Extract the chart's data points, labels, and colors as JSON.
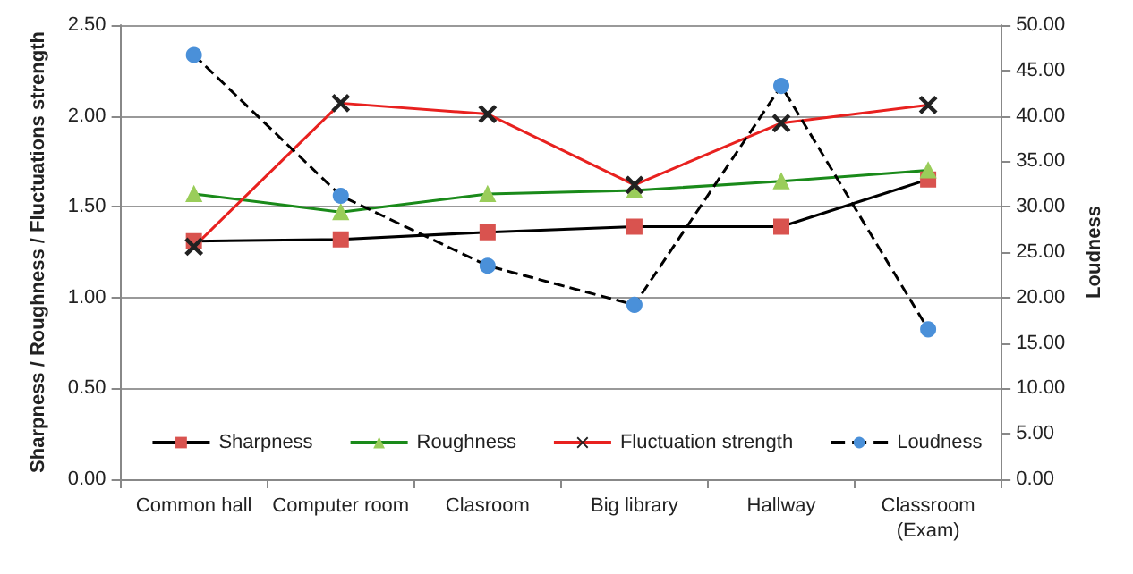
{
  "chart_data": {
    "type": "line",
    "ylabel": "Sharpness / Roughness / Fluctuations strength",
    "y2label": "Loudness",
    "categories": [
      "Common hall",
      "Computer room",
      "Clasroom",
      "Big library",
      "Hallway",
      "Classroom\n(Exam)"
    ],
    "series": [
      {
        "name": "Sharpness",
        "color": "#000000",
        "colors": [
          "#d9534f",
          "#d9534f",
          "#d9534f",
          "#d9534f",
          "#d9534f",
          "#d9534f"
        ],
        "marker": "square",
        "line_style": "solid",
        "values": [
          1.31,
          1.32,
          1.36,
          1.39,
          1.39,
          1.65
        ]
      },
      {
        "name": "Roughness",
        "color": "#1a8a1a",
        "colors": [
          "#9acd5a",
          "#9acd5a",
          "#9acd5a",
          "#9acd5a",
          "#9acd5a",
          "#9acd5a"
        ],
        "marker": "triangle",
        "line_style": "solid",
        "values": [
          1.57,
          1.47,
          1.57,
          1.59,
          1.64,
          1.7
        ]
      },
      {
        "name": "Fluctuation strength",
        "color": "#e8211f",
        "colors": [
          "#222222",
          "#222222",
          "#222222",
          "#222222",
          "#222222",
          "#222222"
        ],
        "marker": "cross",
        "line_style": "solid",
        "values": [
          1.28,
          2.07,
          2.01,
          1.62,
          1.96,
          2.06
        ]
      },
      {
        "name": "Loudness",
        "color": "#000000",
        "colors": [
          "#4a90d9",
          "#4a90d9",
          "#4a90d9",
          "#4a90d9",
          "#4a90d9",
          "#4a90d9"
        ],
        "marker": "circle",
        "line_style": "dashed",
        "axis": "y2",
        "values": [
          46.7,
          31.2,
          23.5,
          19.2,
          43.3,
          16.5
        ]
      }
    ],
    "ylim": [
      0,
      2.5
    ],
    "yticks": [
      {
        "value": 0,
        "label": "0.00"
      },
      {
        "value": 0.5,
        "label": "0.50"
      },
      {
        "value": 1,
        "label": "1.00"
      },
      {
        "value": 1.5,
        "label": "1.50"
      },
      {
        "value": 2,
        "label": "2.00"
      },
      {
        "value": 2.5,
        "label": "2.50"
      }
    ],
    "y2lim": [
      0,
      50
    ],
    "y2ticks": [
      {
        "value": 0,
        "label": "0.00"
      },
      {
        "value": 5,
        "label": "5.00"
      },
      {
        "value": 10,
        "label": "10.00"
      },
      {
        "value": 15,
        "label": "15.00"
      },
      {
        "value": 20,
        "label": "20.00"
      },
      {
        "value": 25,
        "label": "25.00"
      },
      {
        "value": 30,
        "label": "30.00"
      },
      {
        "value": 35,
        "label": "35.00"
      },
      {
        "value": 40,
        "label": "40.00"
      },
      {
        "value": 45,
        "label": "45.00"
      },
      {
        "value": 50,
        "label": "50.00"
      }
    ],
    "grid": "y",
    "legend": "bottom"
  }
}
